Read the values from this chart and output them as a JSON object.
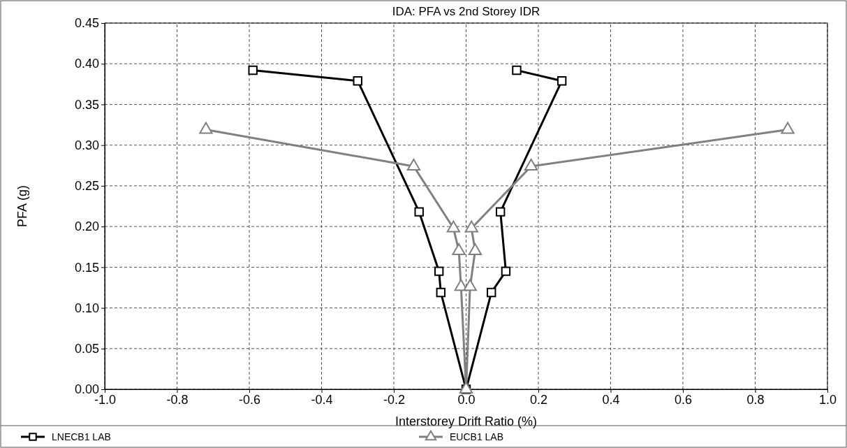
{
  "chart_data": {
    "type": "line",
    "title": "IDA: PFA vs 2nd Storey IDR",
    "xlabel": "Interstorey Drift Ratio (%)",
    "ylabel": "PFA (g)",
    "xlim": [
      -1.0,
      1.0
    ],
    "xticks": [
      {
        "value": -1,
        "label": "-1.0"
      },
      {
        "value": -0.8,
        "label": "-0.8"
      },
      {
        "value": -0.6,
        "label": "-0.6"
      },
      {
        "value": -0.4,
        "label": "-0.4"
      },
      {
        "value": -0.2,
        "label": "-0.2"
      },
      {
        "value": 0,
        "label": "0.0"
      },
      {
        "value": 0.2,
        "label": "0.2"
      },
      {
        "value": 0.4,
        "label": "0.4"
      },
      {
        "value": 0.6,
        "label": "0.6"
      },
      {
        "value": 0.8,
        "label": "0.8"
      },
      {
        "value": 1,
        "label": "1.0"
      }
    ],
    "ylim": [
      0,
      0.45
    ],
    "yticks": [
      {
        "value": 0,
        "label": "0.00"
      },
      {
        "value": 0.05,
        "label": "0.05"
      },
      {
        "value": 0.1,
        "label": "0.10"
      },
      {
        "value": 0.15,
        "label": "0.15"
      },
      {
        "value": 0.2,
        "label": "0.20"
      },
      {
        "value": 0.25,
        "label": "0.25"
      },
      {
        "value": 0.3,
        "label": "0.30"
      },
      {
        "value": 0.35,
        "label": "0.35"
      },
      {
        "value": 0.4,
        "label": "0.40"
      },
      {
        "value": 0.45,
        "label": "0.45"
      }
    ],
    "grid": true,
    "legend": "bottom",
    "line_style": "solid",
    "series": [
      {
        "name": "LNECB1 LAB",
        "color": "#000000",
        "marker": "square",
        "x": [
          -0.59,
          -0.3,
          -0.13,
          -0.075,
          -0.07,
          0,
          0.07,
          0.11,
          0.095,
          0.265,
          0.14
        ],
        "values": [
          0.392,
          0.379,
          0.218,
          0.145,
          0.119,
          0,
          0.119,
          0.145,
          0.218,
          0.379,
          0.392
        ]
      },
      {
        "name": "EUCB1 LAB",
        "color": "#808080",
        "marker": "triangle",
        "x": [
          -0.72,
          -0.145,
          -0.035,
          -0.02,
          -0.014,
          0,
          0.011,
          0.025,
          0.015,
          0.18,
          0.89
        ],
        "values": [
          0.319,
          0.274,
          0.198,
          0.17,
          0.126,
          0,
          0.126,
          0.17,
          0.198,
          0.274,
          0.319
        ]
      }
    ]
  }
}
